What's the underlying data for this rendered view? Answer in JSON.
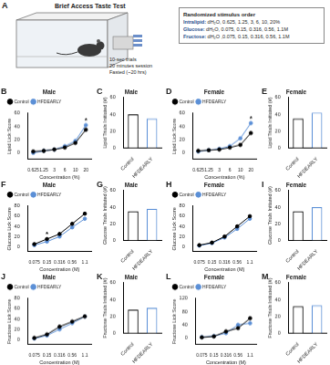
{
  "panel_a": {
    "letter": "A",
    "title": "Brief Access Taste Test",
    "notes": [
      "10-sec trials",
      "20 minutes session",
      "Fasted (~20 hrs)"
    ],
    "box_title": "Randomized stimulus order",
    "stimuli": [
      {
        "name": "Intralipid:",
        "values": "dH₂O, 0.625, 1.25, 3, 6, 10, 20%"
      },
      {
        "name": "Glucose:",
        "values": "dH₂O, 0.075, 0.15, 0.316, 0.56, 1.1M"
      },
      {
        "name": "Fructose:",
        "values": "dH₂O ,0.075, 0.15, 0.316, 0.56, 1.1M"
      }
    ]
  },
  "chart_data": [
    {
      "panel": "B",
      "type": "line",
      "title": "Male",
      "x_label": "Concentration (%)",
      "y_label": "Lipid Lick Score",
      "categories": [
        "0.625",
        "1.25",
        "3",
        "6",
        "10",
        "20"
      ],
      "series": [
        {
          "name": "Control",
          "color": "#000000",
          "marker": "circle",
          "values": [
            2,
            3,
            5,
            8,
            15,
            35
          ]
        },
        {
          "name": "HFDEARLY",
          "color": "#5b8fd6",
          "marker": "circle",
          "values": [
            0,
            3,
            5,
            10,
            18,
            42
          ]
        }
      ],
      "ylim": [
        -10,
        60
      ],
      "yticks": [
        0,
        20,
        40,
        60
      ],
      "legend": "top-left",
      "grid": false,
      "annotations": [
        {
          "x": "20",
          "text": "*"
        }
      ]
    },
    {
      "panel": "C",
      "type": "bar",
      "title": "Male",
      "y_label": "Lipid Trials Initiated (#)",
      "categories": [
        "Control",
        "HFDEARLY"
      ],
      "values": [
        40,
        35
      ],
      "colors": [
        "#000000",
        "#5b8fd6"
      ],
      "ylim": [
        0,
        60
      ],
      "yticks": [
        0,
        20,
        40,
        60
      ],
      "grid": false
    },
    {
      "panel": "D",
      "type": "line",
      "title": "Female",
      "x_label": "Concentration (%)",
      "y_label": "Lipid Lick Score",
      "categories": [
        "0.625",
        "1.25",
        "3",
        "6",
        "10",
        "20"
      ],
      "series": [
        {
          "name": "Control",
          "color": "#000000",
          "marker": "circle",
          "values": [
            3,
            4,
            5,
            8,
            12,
            30
          ]
        },
        {
          "name": "HFDEARLY",
          "color": "#5b8fd6",
          "marker": "circle",
          "values": [
            2,
            4,
            6,
            10,
            22,
            45
          ]
        }
      ],
      "ylim": [
        -10,
        60
      ],
      "yticks": [
        0,
        20,
        40,
        60
      ],
      "legend": "top-left",
      "grid": false,
      "annotations": [
        {
          "x": "20",
          "text": "*"
        }
      ]
    },
    {
      "panel": "E",
      "type": "bar",
      "title": "Female",
      "y_label": "Lipid Trials Initiated (#)",
      "categories": [
        "Control",
        "HFDEARLY"
      ],
      "values": [
        35,
        42
      ],
      "colors": [
        "#000000",
        "#5b8fd6"
      ],
      "ylim": [
        0,
        60
      ],
      "yticks": [
        0,
        20,
        40,
        60
      ],
      "grid": false
    },
    {
      "panel": "F",
      "type": "line",
      "title": "Male",
      "x_label": "Concentration (M)",
      "y_label": "Glucose Lick Score",
      "categories": [
        "0.075",
        "0.15",
        "0.316",
        "0.56",
        "1.1"
      ],
      "series": [
        {
          "name": "Control",
          "color": "#000000",
          "marker": "circle",
          "values": [
            5,
            15,
            25,
            45,
            65
          ]
        },
        {
          "name": "HFDEARLY",
          "color": "#5b8fd6",
          "marker": "circle",
          "values": [
            3,
            10,
            20,
            38,
            55
          ]
        }
      ],
      "ylim": [
        -10,
        80
      ],
      "yticks": [
        0,
        20,
        40,
        60,
        80
      ],
      "legend": "top-left",
      "grid": false,
      "annotations": [
        {
          "x": "0.15",
          "text": "*"
        }
      ]
    },
    {
      "panel": "G",
      "type": "bar",
      "title": "Male",
      "y_label": "Glucose Trials Initiated (#)",
      "categories": [
        "Control",
        "HFDEARLY"
      ],
      "values": [
        35,
        38
      ],
      "colors": [
        "#000000",
        "#5b8fd6"
      ],
      "ylim": [
        0,
        60
      ],
      "yticks": [
        0,
        20,
        40,
        60
      ],
      "grid": false
    },
    {
      "panel": "H",
      "type": "line",
      "title": "Female",
      "x_label": "Concentration (M)",
      "y_label": "Glucose Lick Score",
      "categories": [
        "0.075",
        "0.15",
        "0.316",
        "0.56",
        "1.1"
      ],
      "series": [
        {
          "name": "Control",
          "color": "#000000",
          "marker": "circle",
          "values": [
            3,
            8,
            20,
            40,
            60
          ]
        },
        {
          "name": "HFDEARLY",
          "color": "#5b8fd6",
          "marker": "circle",
          "values": [
            2,
            7,
            18,
            35,
            55
          ]
        }
      ],
      "ylim": [
        -10,
        80
      ],
      "yticks": [
        0,
        20,
        40,
        60,
        80
      ],
      "legend": "top-left",
      "grid": false
    },
    {
      "panel": "I",
      "type": "bar",
      "title": "Female",
      "y_label": "Glucose Trials Initiated (#)",
      "categories": [
        "Control",
        "HFDEARLY"
      ],
      "values": [
        35,
        40
      ],
      "colors": [
        "#000000",
        "#5b8fd6"
      ],
      "ylim": [
        0,
        60
      ],
      "yticks": [
        0,
        20,
        40,
        60
      ],
      "grid": false
    },
    {
      "panel": "J",
      "type": "line",
      "title": "Male",
      "x_label": "Concentration (M)",
      "y_label": "Fructose Lick Score",
      "categories": [
        "0.075",
        "0.15",
        "0.316",
        "0.56",
        "1.1"
      ],
      "series": [
        {
          "name": "Control",
          "color": "#000000",
          "marker": "circle",
          "values": [
            3,
            10,
            25,
            35,
            45
          ]
        },
        {
          "name": "HFDEARLY",
          "color": "#5b8fd6",
          "marker": "circle",
          "values": [
            2,
            8,
            20,
            32,
            45
          ]
        }
      ],
      "ylim": [
        -10,
        80
      ],
      "yticks": [
        0,
        20,
        40,
        60,
        80
      ],
      "legend": "top-left",
      "grid": false
    },
    {
      "panel": "K",
      "type": "bar",
      "title": "Male",
      "y_label": "Fructose Trials Initiated (#)",
      "categories": [
        "Control",
        "HFDEARLY"
      ],
      "values": [
        28,
        30
      ],
      "colors": [
        "#000000",
        "#5b8fd6"
      ],
      "ylim": [
        0,
        60
      ],
      "yticks": [
        0,
        20,
        40,
        60
      ],
      "grid": false
    },
    {
      "panel": "L",
      "type": "line",
      "title": "Female",
      "x_label": "Concentration (M)",
      "y_label": "Fructose Lick Score",
      "categories": [
        "0.075",
        "0.15",
        "0.316",
        "0.56",
        "1.1"
      ],
      "series": [
        {
          "name": "Control",
          "color": "#000000",
          "marker": "circle",
          "values": [
            2,
            5,
            20,
            30,
            60
          ]
        },
        {
          "name": "HFDEARLY",
          "color": "#5b8fd6",
          "marker": "circle",
          "values": [
            3,
            6,
            15,
            40,
            45
          ]
        }
      ],
      "ylim": [
        -20,
        120
      ],
      "yticks": [
        0,
        40,
        80,
        120
      ],
      "legend": "top-left",
      "grid": false
    },
    {
      "panel": "M",
      "type": "bar",
      "title": "Female",
      "y_label": "Fructose Trials Initiated (#)",
      "categories": [
        "Control",
        "HFDEARLY"
      ],
      "values": [
        32,
        33
      ],
      "colors": [
        "#000000",
        "#5b8fd6"
      ],
      "ylim": [
        0,
        60
      ],
      "yticks": [
        0,
        20,
        40,
        60
      ],
      "grid": false
    }
  ]
}
